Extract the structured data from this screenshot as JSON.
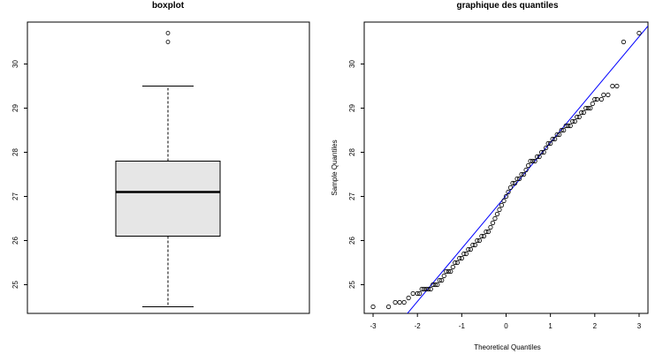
{
  "chart_data": [
    {
      "type": "boxplot",
      "title": "boxplot",
      "xlabel": "",
      "ylabel": "",
      "yticks": [
        "25",
        "26",
        "27",
        "28",
        "29",
        "30"
      ],
      "ylim": [
        24.35,
        30.95
      ],
      "grid": false,
      "box": {
        "whisker_low": 24.5,
        "q1": 26.1,
        "median": 27.1,
        "q3": 27.8,
        "whisker_high": 29.5,
        "outliers": [
          30.5,
          30.7
        ]
      },
      "colors": {
        "box_fill": "#e6e6e6",
        "stroke": "#000000"
      }
    },
    {
      "type": "scatter",
      "title": "graphique des quantiles",
      "xlabel": "Theoretical Quantiles",
      "ylabel": "Sample Quantiles",
      "xticks": [
        "-3",
        "-2",
        "-1",
        "0",
        "1",
        "2",
        "3"
      ],
      "yticks": [
        "25",
        "26",
        "27",
        "28",
        "29",
        "30"
      ],
      "xlim": [
        -3.2,
        3.2
      ],
      "ylim": [
        24.35,
        30.95
      ],
      "grid": false,
      "reference_line": {
        "intercept": 27.02,
        "slope": 1.2
      },
      "points": [
        [
          -3.0,
          24.5
        ],
        [
          -2.65,
          24.5
        ],
        [
          -2.5,
          24.6
        ],
        [
          -2.4,
          24.6
        ],
        [
          -2.3,
          24.6
        ],
        [
          -2.2,
          24.7
        ],
        [
          -2.1,
          24.8
        ],
        [
          -2.0,
          24.8
        ],
        [
          -1.95,
          24.8
        ],
        [
          -1.9,
          24.9
        ],
        [
          -1.85,
          24.9
        ],
        [
          -1.8,
          24.9
        ],
        [
          -1.75,
          24.9
        ],
        [
          -1.7,
          24.9
        ],
        [
          -1.65,
          25.0
        ],
        [
          -1.6,
          25.0
        ],
        [
          -1.55,
          25.0
        ],
        [
          -1.5,
          25.1
        ],
        [
          -1.45,
          25.1
        ],
        [
          -1.4,
          25.2
        ],
        [
          -1.35,
          25.3
        ],
        [
          -1.3,
          25.3
        ],
        [
          -1.25,
          25.3
        ],
        [
          -1.2,
          25.4
        ],
        [
          -1.15,
          25.5
        ],
        [
          -1.1,
          25.5
        ],
        [
          -1.05,
          25.6
        ],
        [
          -1.0,
          25.6
        ],
        [
          -0.95,
          25.7
        ],
        [
          -0.9,
          25.7
        ],
        [
          -0.85,
          25.8
        ],
        [
          -0.8,
          25.8
        ],
        [
          -0.75,
          25.9
        ],
        [
          -0.7,
          25.9
        ],
        [
          -0.65,
          26.0
        ],
        [
          -0.6,
          26.0
        ],
        [
          -0.55,
          26.1
        ],
        [
          -0.5,
          26.1
        ],
        [
          -0.45,
          26.2
        ],
        [
          -0.4,
          26.2
        ],
        [
          -0.35,
          26.3
        ],
        [
          -0.3,
          26.4
        ],
        [
          -0.25,
          26.5
        ],
        [
          -0.2,
          26.6
        ],
        [
          -0.15,
          26.7
        ],
        [
          -0.1,
          26.8
        ],
        [
          -0.05,
          26.9
        ],
        [
          0.0,
          27.0
        ],
        [
          0.05,
          27.1
        ],
        [
          0.1,
          27.2
        ],
        [
          0.15,
          27.3
        ],
        [
          0.2,
          27.3
        ],
        [
          0.25,
          27.4
        ],
        [
          0.3,
          27.4
        ],
        [
          0.35,
          27.5
        ],
        [
          0.4,
          27.5
        ],
        [
          0.45,
          27.6
        ],
        [
          0.5,
          27.7
        ],
        [
          0.55,
          27.8
        ],
        [
          0.6,
          27.8
        ],
        [
          0.65,
          27.8
        ],
        [
          0.7,
          27.9
        ],
        [
          0.75,
          27.9
        ],
        [
          0.8,
          28.0
        ],
        [
          0.85,
          28.0
        ],
        [
          0.9,
          28.1
        ],
        [
          0.95,
          28.2
        ],
        [
          1.0,
          28.2
        ],
        [
          1.05,
          28.3
        ],
        [
          1.1,
          28.3
        ],
        [
          1.15,
          28.4
        ],
        [
          1.2,
          28.4
        ],
        [
          1.25,
          28.5
        ],
        [
          1.3,
          28.5
        ],
        [
          1.35,
          28.6
        ],
        [
          1.4,
          28.6
        ],
        [
          1.45,
          28.6
        ],
        [
          1.5,
          28.7
        ],
        [
          1.55,
          28.7
        ],
        [
          1.6,
          28.8
        ],
        [
          1.65,
          28.8
        ],
        [
          1.7,
          28.9
        ],
        [
          1.75,
          28.9
        ],
        [
          1.8,
          29.0
        ],
        [
          1.85,
          29.0
        ],
        [
          1.9,
          29.0
        ],
        [
          1.95,
          29.1
        ],
        [
          2.0,
          29.2
        ],
        [
          2.05,
          29.2
        ],
        [
          2.15,
          29.2
        ],
        [
          2.2,
          29.3
        ],
        [
          2.3,
          29.3
        ],
        [
          2.4,
          29.5
        ],
        [
          2.5,
          29.5
        ],
        [
          2.65,
          30.5
        ],
        [
          3.0,
          30.7
        ]
      ],
      "colors": {
        "points": "#000000",
        "line": "#0000ff"
      }
    }
  ]
}
